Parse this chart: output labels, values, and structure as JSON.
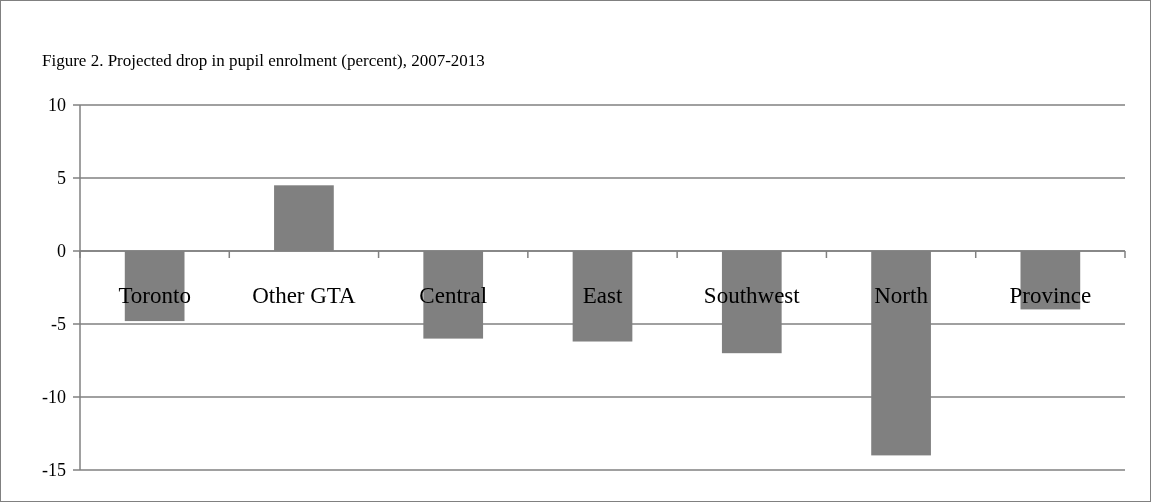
{
  "chart_data": {
    "type": "bar",
    "title": "Figure 2. Projected drop in pupil enrolment (percent), 2007-2013",
    "categories": [
      "Toronto",
      "Other GTA",
      "Central",
      "East",
      "Southwest",
      "North",
      "Province"
    ],
    "values": [
      -4.8,
      4.5,
      -6.0,
      -6.2,
      -7.0,
      -14.0,
      -4.0
    ],
    "color": "#808080",
    "ylim": [
      -15,
      10
    ],
    "yticks": [
      -15,
      -10,
      -5,
      0,
      5,
      10
    ],
    "grid": "y"
  }
}
